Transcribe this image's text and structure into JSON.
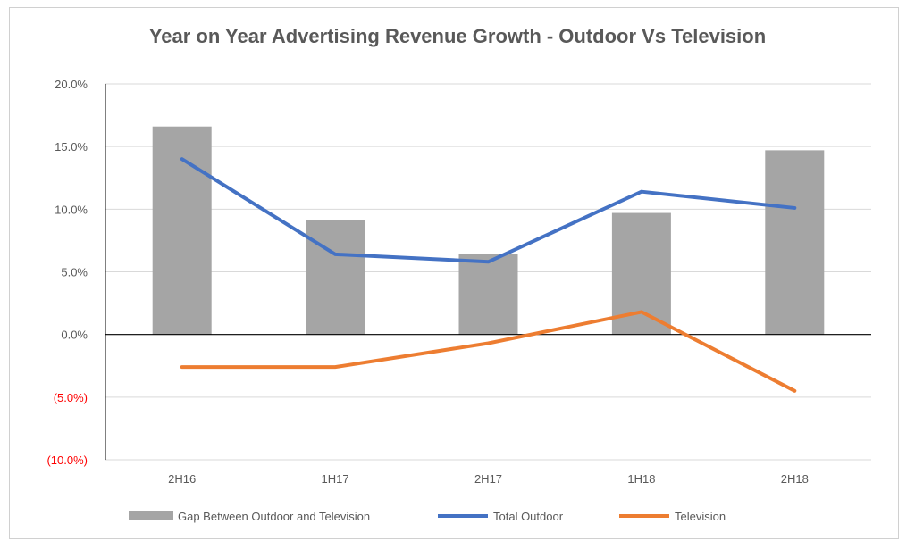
{
  "chart_data": {
    "type": "bar",
    "title": "Year on Year Advertising Revenue Growth - Outdoor Vs Television",
    "categories": [
      "2H16",
      "1H17",
      "2H17",
      "1H18",
      "2H18"
    ],
    "ylim": [
      -10,
      20
    ],
    "yticks": [
      20,
      15,
      10,
      5,
      0,
      -5,
      -10
    ],
    "ytick_labels": [
      "20.0%",
      "15.0%",
      "10.0%",
      "5.0%",
      "0.0%",
      "(5.0%)",
      "(10.0%)"
    ],
    "grid": true,
    "legend_position": "bottom",
    "series": [
      {
        "name": "Gap Between Outdoor and Television",
        "kind": "bar",
        "color": "#a5a5a5",
        "values": [
          16.6,
          9.1,
          6.4,
          9.7,
          14.7
        ]
      },
      {
        "name": "Total Outdoor",
        "kind": "line",
        "color": "#4472c4",
        "values": [
          14.0,
          6.4,
          5.8,
          11.4,
          10.1
        ]
      },
      {
        "name": "Television",
        "kind": "line",
        "color": "#ed7d31",
        "values": [
          -2.6,
          -2.6,
          -0.7,
          1.8,
          -4.5
        ]
      }
    ],
    "colors": {
      "negative_tick": "#ff0000",
      "positive_tick": "#595959",
      "axis": "#000000",
      "grid": "#d9d9d9"
    }
  }
}
